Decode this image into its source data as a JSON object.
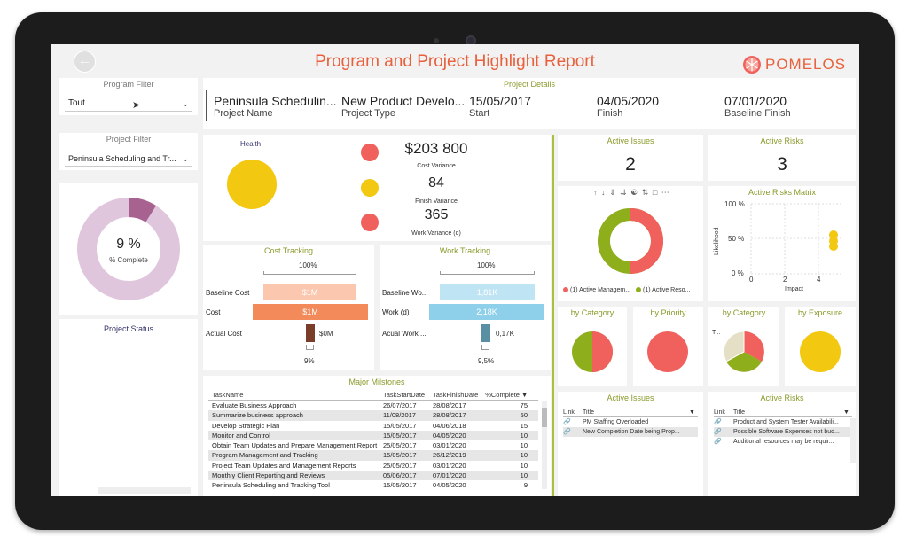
{
  "header": {
    "title": "Program and Project Highlight Report",
    "logo_text": "POMELOS"
  },
  "program_filter": {
    "label": "Program Filter",
    "value": "Tout"
  },
  "project_filter": {
    "label": "Project Filter",
    "value": "Peninsula Scheduling and Tr..."
  },
  "donut": {
    "value_label": "9 %",
    "caption": "% Complete",
    "percent": 9
  },
  "project_status": {
    "label": "Project Status"
  },
  "project_details": {
    "title": "Project Details",
    "fields": [
      {
        "value": "Peninsula Schedulin...",
        "label": "Project Name"
      },
      {
        "value": "New Product Develo...",
        "label": "Project Type"
      },
      {
        "value": "15/05/2017",
        "label": "Start"
      },
      {
        "value": "04/05/2020",
        "label": "Finish"
      },
      {
        "value": "07/01/2020",
        "label": "Baseline Finish"
      }
    ]
  },
  "health": {
    "label": "Health",
    "cost_variance": {
      "value": "$203 800",
      "label": "Cost Variance"
    },
    "finish_variance": {
      "value": "84",
      "label": "Finish Variance"
    },
    "work_variance": {
      "value": "365",
      "label": "Work Variance (d)"
    }
  },
  "cost_tracking": {
    "title": "Cost Tracking",
    "top_pct": "100%",
    "bottom_pct": "9%",
    "rows": [
      {
        "label": "Baseline Cost",
        "value": "$1M"
      },
      {
        "label": "Cost",
        "value": "$1M"
      },
      {
        "label": "Actual Cost",
        "value": "$0M"
      }
    ]
  },
  "work_tracking": {
    "title": "Work Tracking",
    "top_pct": "100%",
    "bottom_pct": "9,5%",
    "rows": [
      {
        "label": "Baseline Wo...",
        "value": "1,81K"
      },
      {
        "label": "Work (d)",
        "value": "2,18K"
      },
      {
        "label": "Acual Work ...",
        "value": "0,17K"
      }
    ]
  },
  "milestones": {
    "title": "Major Milstones",
    "columns": [
      "TaskName",
      "TaskStartDate",
      "TaskFinishDate",
      "%Complete"
    ],
    "rows": [
      [
        "Evaluate Business Approach",
        "26/07/2017",
        "28/08/2017",
        "75"
      ],
      [
        "Summarize business approach",
        "11/08/2017",
        "28/08/2017",
        "50"
      ],
      [
        "Develop Strategic Plan",
        "15/05/2017",
        "04/06/2018",
        "15"
      ],
      [
        "Monitor and Control",
        "15/05/2017",
        "04/05/2020",
        "10"
      ],
      [
        "Obtain Team Updates and Prepare Management Report",
        "25/05/2017",
        "03/01/2020",
        "10"
      ],
      [
        "Program Management and Tracking",
        "15/05/2017",
        "26/12/2019",
        "10"
      ],
      [
        "Project Team Updates and Management Reports",
        "25/05/2017",
        "03/01/2020",
        "10"
      ],
      [
        "Monthly Client Reporting and Reviews",
        "05/06/2017",
        "07/01/2020",
        "10"
      ],
      [
        "Peninsula Scheduling and Tracking Tool",
        "15/05/2017",
        "04/05/2020",
        "9"
      ]
    ]
  },
  "active_issues_card": {
    "title": "Active Issues",
    "value": "2"
  },
  "active_risks_card": {
    "title": "Active Risks",
    "value": "3"
  },
  "issues_donut": {
    "legend": [
      "(1) Active Managem...",
      "(1) Active Reso..."
    ],
    "colors": [
      "#f0615e",
      "#8fae1b"
    ]
  },
  "risks_matrix": {
    "title": "Active Risks Matrix",
    "y_ticks": [
      "100 %",
      "50 %",
      "0 %"
    ],
    "x_ticks": [
      "0",
      "2",
      "4"
    ],
    "x_label": "Impact",
    "y_label": "Likelihood"
  },
  "issue_by_category": {
    "title": "by Category"
  },
  "issue_by_priority": {
    "title": "by Priority"
  },
  "risk_by_category": {
    "title": "by Category",
    "axis_label": "T..."
  },
  "risk_by_exposure": {
    "title": "by Exposure"
  },
  "issues_list": {
    "title": "Active Issues",
    "columns": [
      "Link",
      "Title"
    ],
    "rows": [
      "PM Staffing Overloaded",
      "New Completion Date being Prop..."
    ]
  },
  "risks_list": {
    "title": "Active Risks",
    "columns": [
      "Link",
      "Title"
    ],
    "rows": [
      "Product and System Tester Availabili...",
      "Possible Software Expenses not bud...",
      "Additional resources may be requir..."
    ]
  },
  "colors": {
    "red": "#f0615e",
    "yellow": "#f2c811",
    "green": "#8fae1b",
    "accent_title": "#e8603c",
    "donut_fill": "#a8628f",
    "donut_track": "#dfc6dc"
  }
}
